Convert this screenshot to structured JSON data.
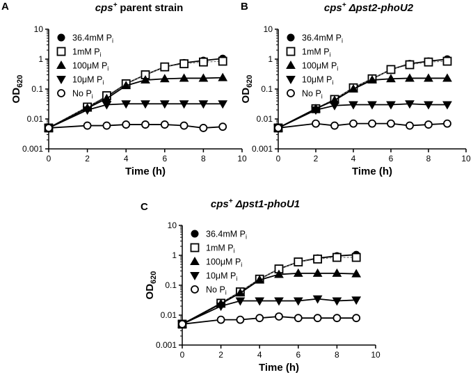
{
  "figure": {
    "panels": [
      {
        "letter": "A",
        "title_main": "cps",
        "title_sup": "+",
        "title_rest": "parent strain"
      },
      {
        "letter": "B",
        "title_main": "cps",
        "title_sup": "+",
        "title_rest": "Δpst2-phoU2"
      },
      {
        "letter": "C",
        "title_main": "cps",
        "title_sup": "+",
        "title_rest": "Δpst1-phoU1"
      }
    ]
  },
  "chart_data": [
    {
      "type": "line",
      "panel": "A",
      "title": "cps+ parent strain",
      "xlabel": "Time (h)",
      "ylabel": "OD620",
      "ylabel_main": "OD",
      "ylabel_sub": "620",
      "xlim": [
        0,
        10
      ],
      "ylim": [
        0.001,
        10
      ],
      "yscale": "log",
      "xticks": [
        0,
        2,
        4,
        6,
        8,
        10
      ],
      "yticks": [
        0.001,
        0.01,
        0.1,
        1,
        10
      ],
      "ytick_labels": [
        "0.001",
        "0.01",
        "0.1",
        "1",
        "10"
      ],
      "legend_position": "top-left",
      "series": [
        {
          "name": "36.4mM Pi",
          "label_main": "36.4mM P",
          "label_sub": "i",
          "marker": "circle-filled",
          "x": [
            0,
            2,
            3,
            4,
            5,
            6,
            7,
            8,
            9
          ],
          "y": [
            0.005,
            0.025,
            0.055,
            0.15,
            0.3,
            0.55,
            0.75,
            0.9,
            1.05
          ]
        },
        {
          "name": "1mM Pi",
          "label_main": "1mM P",
          "label_sub": "i",
          "marker": "square-open",
          "x": [
            0,
            2,
            3,
            4,
            5,
            6,
            7,
            8,
            9
          ],
          "y": [
            0.005,
            0.025,
            0.06,
            0.15,
            0.3,
            0.55,
            0.7,
            0.8,
            0.85
          ]
        },
        {
          "name": "100μM Pi",
          "label_main": "100μM P",
          "label_sub": "i",
          "marker": "triangle-up",
          "x": [
            0,
            2,
            3,
            4,
            5,
            6,
            7,
            8,
            9
          ],
          "y": [
            0.005,
            0.023,
            0.048,
            0.13,
            0.2,
            0.22,
            0.23,
            0.23,
            0.24
          ]
        },
        {
          "name": "10μM Pi",
          "label_main": "10μM P",
          "label_sub": "i",
          "marker": "triangle-down",
          "x": [
            0,
            2,
            3,
            4,
            5,
            6,
            7,
            8,
            9
          ],
          "y": [
            0.005,
            0.02,
            0.03,
            0.032,
            0.032,
            0.032,
            0.032,
            0.032,
            0.032
          ]
        },
        {
          "name": "No Pi",
          "label_main": "No P",
          "label_sub": "i",
          "marker": "circle-open",
          "x": [
            0,
            2,
            3,
            4,
            5,
            6,
            7,
            8,
            9
          ],
          "y": [
            0.005,
            0.006,
            0.006,
            0.0065,
            0.0065,
            0.0065,
            0.006,
            0.005,
            0.0055
          ]
        }
      ]
    },
    {
      "type": "line",
      "panel": "B",
      "title": "cps+ Δpst2-phoU2",
      "xlabel": "Time (h)",
      "ylabel": "OD620",
      "ylabel_main": "OD",
      "ylabel_sub": "620",
      "xlim": [
        0,
        10
      ],
      "ylim": [
        0.001,
        10
      ],
      "yscale": "log",
      "xticks": [
        0,
        2,
        4,
        6,
        8,
        10
      ],
      "yticks": [
        0.001,
        0.01,
        0.1,
        1,
        10
      ],
      "ytick_labels": [
        "0.001",
        "0.01",
        "0.1",
        "1",
        "10"
      ],
      "legend_position": "top-left",
      "series": [
        {
          "name": "36.4mM Pi",
          "label_main": "36.4mM P",
          "label_sub": "i",
          "marker": "circle-filled",
          "x": [
            0,
            2,
            3,
            4,
            5,
            6,
            7,
            8,
            9
          ],
          "y": [
            0.005,
            0.022,
            0.045,
            0.11,
            0.22,
            0.45,
            0.7,
            0.85,
            1.0
          ]
        },
        {
          "name": "1mM Pi",
          "label_main": "1mM P",
          "label_sub": "i",
          "marker": "square-open",
          "x": [
            0,
            2,
            3,
            4,
            5,
            6,
            7,
            8,
            9
          ],
          "y": [
            0.005,
            0.022,
            0.045,
            0.11,
            0.22,
            0.45,
            0.65,
            0.8,
            0.85
          ]
        },
        {
          "name": "100μM Pi",
          "label_main": "100μM P",
          "label_sub": "i",
          "marker": "triangle-up",
          "x": [
            0,
            2,
            3,
            4,
            5,
            6,
            7,
            8,
            9
          ],
          "y": [
            0.005,
            0.022,
            0.042,
            0.1,
            0.2,
            0.22,
            0.23,
            0.23,
            0.23
          ]
        },
        {
          "name": "10μM Pi",
          "label_main": "10μM P",
          "label_sub": "i",
          "marker": "triangle-down",
          "x": [
            0,
            2,
            3,
            4,
            5,
            6,
            7,
            8,
            9
          ],
          "y": [
            0.005,
            0.02,
            0.028,
            0.03,
            0.03,
            0.03,
            0.032,
            0.03,
            0.03
          ]
        },
        {
          "name": "No Pi",
          "label_main": "No P",
          "label_sub": "i",
          "marker": "circle-open",
          "x": [
            0,
            2,
            3,
            4,
            5,
            6,
            7,
            8,
            9
          ],
          "y": [
            0.005,
            0.007,
            0.006,
            0.007,
            0.007,
            0.007,
            0.006,
            0.0065,
            0.007
          ]
        }
      ]
    },
    {
      "type": "line",
      "panel": "C",
      "title": "cps+ Δpst1-phoU1",
      "xlabel": "Time (h)",
      "ylabel": "OD620",
      "ylabel_main": "OD",
      "ylabel_sub": "620",
      "xlim": [
        0,
        10
      ],
      "ylim": [
        0.001,
        10
      ],
      "yscale": "log",
      "xticks": [
        0,
        2,
        4,
        6,
        8,
        10
      ],
      "yticks": [
        0.001,
        0.01,
        0.1,
        1,
        10
      ],
      "ytick_labels": [
        "0.001",
        "0.01",
        "0.1",
        "1",
        "10"
      ],
      "legend_position": "top-left",
      "series": [
        {
          "name": "36.4mM Pi",
          "label_main": "36.4mM P",
          "label_sub": "i",
          "marker": "circle-filled",
          "x": [
            0,
            2,
            3,
            4,
            5,
            6,
            7,
            8,
            9
          ],
          "y": [
            0.005,
            0.025,
            0.06,
            0.16,
            0.35,
            0.6,
            0.8,
            0.95,
            1.05
          ]
        },
        {
          "name": "1mM Pi",
          "label_main": "1mM P",
          "label_sub": "i",
          "marker": "square-open",
          "x": [
            0,
            2,
            3,
            4,
            5,
            6,
            7,
            8,
            9
          ],
          "y": [
            0.005,
            0.025,
            0.06,
            0.16,
            0.35,
            0.6,
            0.75,
            0.85,
            0.85
          ]
        },
        {
          "name": "100μM Pi",
          "label_main": "100μM P",
          "label_sub": "i",
          "marker": "triangle-up",
          "x": [
            0,
            2,
            3,
            4,
            5,
            6,
            7,
            8,
            9
          ],
          "y": [
            0.005,
            0.024,
            0.055,
            0.15,
            0.23,
            0.25,
            0.25,
            0.25,
            0.24
          ]
        },
        {
          "name": "10μM Pi",
          "label_main": "10μM P",
          "label_sub": "i",
          "marker": "triangle-down",
          "x": [
            0,
            2,
            3,
            4,
            5,
            6,
            7,
            8,
            9
          ],
          "y": [
            0.005,
            0.02,
            0.03,
            0.03,
            0.03,
            0.03,
            0.035,
            0.03,
            0.032
          ]
        },
        {
          "name": "No Pi",
          "label_main": "No P",
          "label_sub": "i",
          "marker": "circle-open",
          "x": [
            0,
            2,
            3,
            4,
            5,
            6,
            7,
            8,
            9
          ],
          "y": [
            0.005,
            0.007,
            0.007,
            0.008,
            0.009,
            0.008,
            0.008,
            0.008,
            0.008
          ]
        }
      ]
    }
  ]
}
